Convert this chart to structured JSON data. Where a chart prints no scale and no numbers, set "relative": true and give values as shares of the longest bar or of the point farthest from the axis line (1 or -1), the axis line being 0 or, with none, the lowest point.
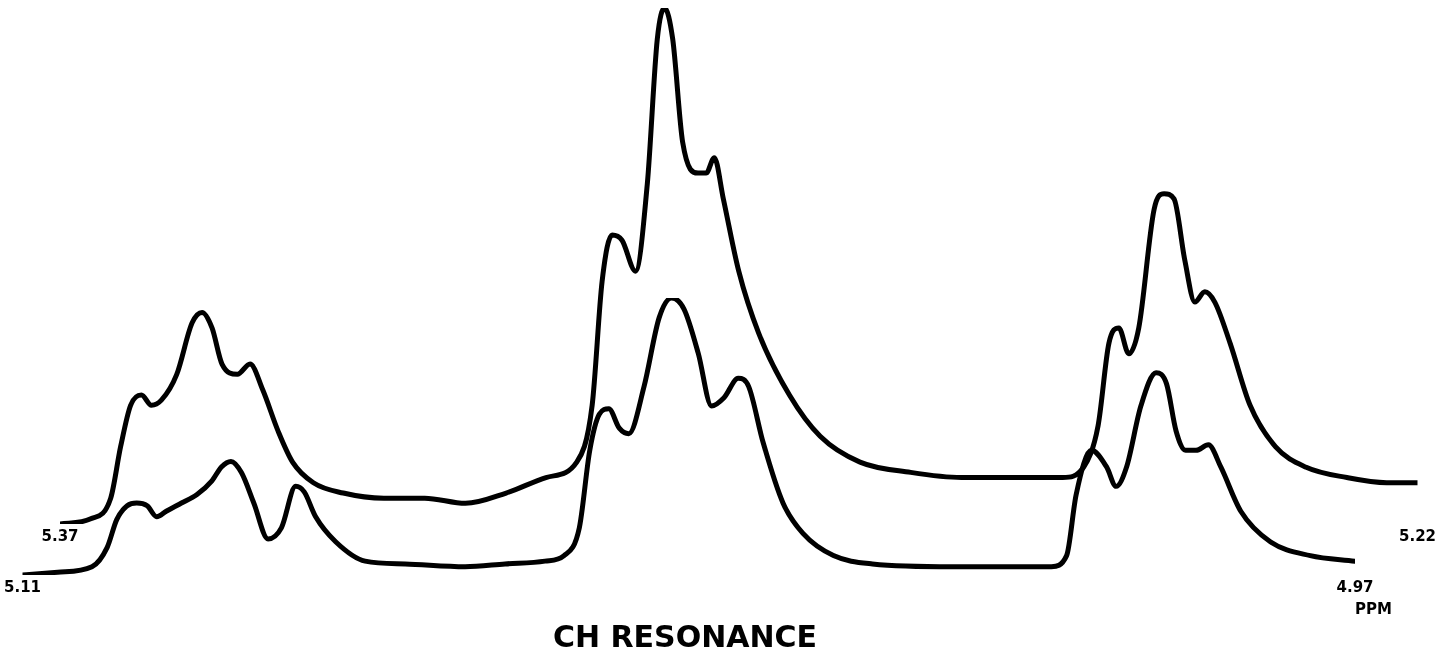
{
  "chart_data": [
    {
      "type": "line",
      "relative": true,
      "tick_labels": "x",
      "marker": "none",
      "xlim": [
        5.37,
        5.22
      ],
      "xticks": [
        5.37,
        5.22
      ],
      "series": [
        {
          "color": "#000000",
          "x": [
            5.37,
            5.3666,
            5.3644,
            5.3633,
            5.3622,
            5.361,
            5.3599,
            5.3588,
            5.3571,
            5.3554,
            5.3543,
            5.3532,
            5.3521,
            5.3504,
            5.349,
            5.3476,
            5.3459,
            5.3443,
            5.342,
            5.3387,
            5.3342,
            5.3297,
            5.3252,
            5.3207,
            5.3163,
            5.3129,
            5.3112,
            5.3101,
            5.309,
            5.3079,
            5.3064,
            5.3051,
            5.304,
            5.3032,
            5.3023,
            5.3012,
            5.2995,
            5.2986,
            5.2977,
            5.2967,
            5.295,
            5.2928,
            5.2894,
            5.286,
            5.2816,
            5.276,
            5.2704,
            5.2648,
            5.2592,
            5.2569,
            5.2553,
            5.2541,
            5.253,
            5.2519,
            5.2508,
            5.2491,
            5.248,
            5.2469,
            5.2457,
            5.2446,
            5.2435,
            5.2424,
            5.2407,
            5.2385,
            5.2357,
            5.2323,
            5.2278,
            5.2234,
            5.22
          ],
          "values": [
            0,
            0.01,
            0.05,
            0.15,
            0.23,
            0.25,
            0.23,
            0.24,
            0.29,
            0.39,
            0.41,
            0.38,
            0.31,
            0.29,
            0.31,
            0.26,
            0.18,
            0.12,
            0.08,
            0.06,
            0.05,
            0.05,
            0.04,
            0.06,
            0.09,
            0.12,
            0.23,
            0.47,
            0.56,
            0.55,
            0.49,
            0.66,
            0.94,
            1,
            0.94,
            0.74,
            0.68,
            0.68,
            0.71,
            0.63,
            0.49,
            0.37,
            0.25,
            0.17,
            0.12,
            0.1,
            0.09,
            0.09,
            0.09,
            0.11,
            0.19,
            0.35,
            0.38,
            0.33,
            0.38,
            0.61,
            0.64,
            0.63,
            0.51,
            0.43,
            0.45,
            0.43,
            0.35,
            0.23,
            0.15,
            0.11,
            0.09,
            0.08,
            0.08
          ]
        }
      ]
    },
    {
      "type": "line",
      "relative": true,
      "tick_labels": "x",
      "marker": "none",
      "title": "CH RESONANCE",
      "xlabel": "PPM",
      "xlim": [
        5.11,
        4.97
      ],
      "xticks": [
        5.11,
        4.97
      ],
      "series": [
        {
          "color": "#000000",
          "x": [
            5.11,
            5.1063,
            5.1027,
            5.1011,
            5.1001,
            5.099,
            5.098,
            5.0969,
            5.0959,
            5.0949,
            5.0933,
            5.0917,
            5.0901,
            5.0891,
            5.0881,
            5.087,
            5.0857,
            5.0842,
            5.0828,
            5.0813,
            5.0804,
            5.0792,
            5.0771,
            5.074,
            5.0698,
            5.0635,
            5.0593,
            5.0551,
            5.0531,
            5.0515,
            5.0504,
            5.0494,
            5.0484,
            5.0473,
            5.0463,
            5.0447,
            5.0431,
            5.0418,
            5.0405,
            5.039,
            5.0376,
            5.0363,
            5.0348,
            5.0337,
            5.0322,
            5.0301,
            5.028,
            5.0248,
            5.0207,
            5.0123,
            5.0019,
            5.0003,
            4.9993,
            4.9977,
            4.9961,
            4.9951,
            4.994,
            4.9925,
            4.9909,
            4.9898,
            4.9888,
            4.9878,
            4.9867,
            4.9854,
            4.9841,
            4.982,
            4.9789,
            4.9747,
            4.97
          ],
          "values": [
            0,
            0.01,
            0.03,
            0.1,
            0.2,
            0.25,
            0.26,
            0.25,
            0.21,
            0.23,
            0.26,
            0.29,
            0.34,
            0.39,
            0.41,
            0.37,
            0.26,
            0.13,
            0.17,
            0.32,
            0.3,
            0.21,
            0.12,
            0.05,
            0.04,
            0.03,
            0.04,
            0.05,
            0.07,
            0.17,
            0.45,
            0.58,
            0.6,
            0.53,
            0.51,
            0.68,
            0.93,
            1,
            0.96,
            0.8,
            0.61,
            0.64,
            0.71,
            0.68,
            0.48,
            0.26,
            0.15,
            0.07,
            0.04,
            0.03,
            0.03,
            0.07,
            0.29,
            0.45,
            0.39,
            0.32,
            0.39,
            0.61,
            0.73,
            0.69,
            0.52,
            0.45,
            0.45,
            0.47,
            0.39,
            0.23,
            0.12,
            0.07,
            0.05
          ]
        }
      ]
    }
  ]
}
